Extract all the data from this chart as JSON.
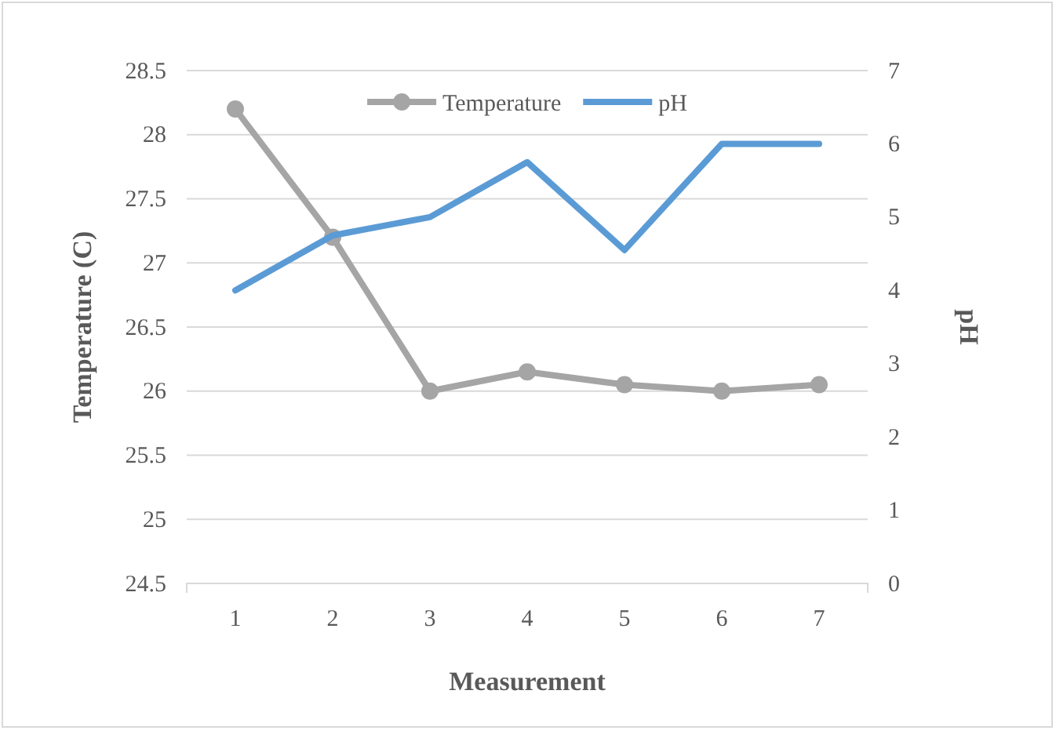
{
  "chart_data": {
    "type": "line",
    "xlabel": "Measurement",
    "ylabel": "Temperature (C)",
    "y2label": "pH",
    "categories": [
      "1",
      "2",
      "3",
      "4",
      "5",
      "6",
      "7"
    ],
    "series": [
      {
        "name": "Temperature",
        "color": "#a5a5a5",
        "marker": "circle",
        "values": [
          28.2,
          27.2,
          26.0,
          26.15,
          26.05,
          26.0,
          26.05
        ]
      },
      {
        "name": "pH",
        "color": "#5b9bd5",
        "marker": "none",
        "axis": "y2",
        "values": [
          4.0,
          4.75,
          5.0,
          5.75,
          4.55,
          6.0,
          6.0
        ]
      }
    ],
    "ylim": [
      24.5,
      28.5
    ],
    "yticks": [
      24.5,
      25,
      25.5,
      26,
      26.5,
      27,
      27.5,
      28,
      28.5
    ],
    "y2lim": [
      0,
      7
    ],
    "y2ticks": [
      0,
      1,
      2,
      3,
      4,
      5,
      6,
      7
    ],
    "grid": "y",
    "legend": "top"
  }
}
